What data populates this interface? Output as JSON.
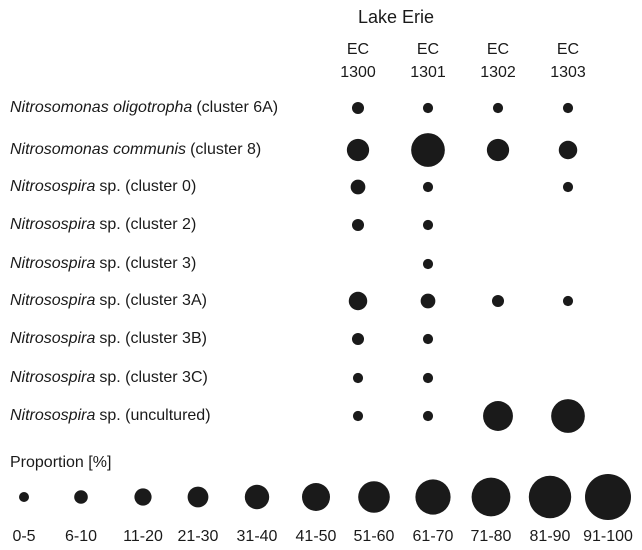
{
  "chart_data": {
    "type": "bubble",
    "title": "Lake Erie",
    "color": "#1a1a1a",
    "columns": [
      {
        "line1": "EC",
        "line2": "1300"
      },
      {
        "line1": "EC",
        "line2": "1301"
      },
      {
        "line1": "EC",
        "line2": "1302"
      },
      {
        "line1": "EC",
        "line2": "1303"
      }
    ],
    "series": [
      {
        "italic": "Nitrosomonas oligotropha",
        "rest": "(cluster 6A)",
        "values": [
          8,
          3,
          3,
          3
        ]
      },
      {
        "italic": "Nitrosomonas communis",
        "rest": "(cluster 8)",
        "values": [
          35,
          65,
          35,
          25
        ]
      },
      {
        "italic": "Nitrosospira",
        "rest": "sp. (cluster 0)",
        "values": [
          15,
          3,
          null,
          3
        ]
      },
      {
        "italic": "Nitrosospira",
        "rest": "sp. (cluster 2)",
        "values": [
          8,
          3,
          null,
          null
        ]
      },
      {
        "italic": "Nitrosospira",
        "rest": "sp. (cluster 3)",
        "values": [
          null,
          3,
          null,
          null
        ]
      },
      {
        "italic": "Nitrosospira",
        "rest": "sp. (cluster 3A)",
        "values": [
          25,
          15,
          8,
          3
        ]
      },
      {
        "italic": "Nitrosospira",
        "rest": "sp. (cluster 3B)",
        "values": [
          8,
          3,
          null,
          null
        ]
      },
      {
        "italic": "Nitrosospira",
        "rest": "sp. (cluster 3C)",
        "values": [
          3,
          3,
          null,
          null
        ]
      },
      {
        "italic": "Nitrosospira",
        "rest": "sp. (uncultured)",
        "values": [
          3,
          3,
          55,
          65
        ]
      }
    ],
    "legend_title": "Proportion [%]",
    "legend_bins": [
      "0-5",
      "6-10",
      "11-20",
      "21-30",
      "31-40",
      "41-50",
      "51-60",
      "61-70",
      "71-80",
      "81-90",
      "91-100"
    ]
  }
}
